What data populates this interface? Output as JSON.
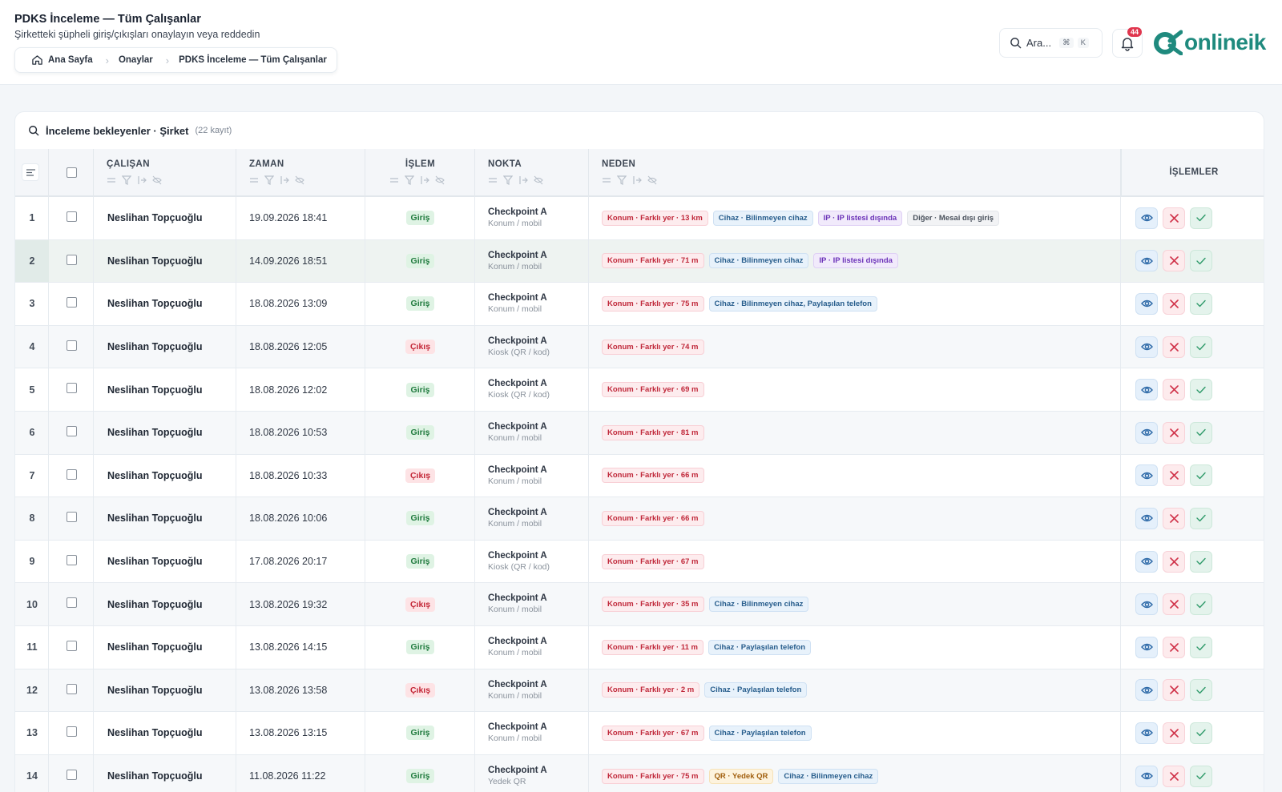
{
  "header": {
    "title": "PDKS İnceleme — Tüm Çalışanlar",
    "subtitle": "Şirketteki şüpheli giriş/çıkışları onaylayın veya reddedin",
    "breadcrumb": [
      "Ana Sayfa",
      "Onaylar",
      "PDKS İnceleme — Tüm Çalışanlar"
    ],
    "search_placeholder": "Ara...",
    "search_kbd": [
      "⌘",
      "K"
    ],
    "notification_count": "44",
    "logo_text": "onlineik"
  },
  "panel": {
    "title": "İnceleme bekleyenler · Şirket",
    "count_label": "(22 kayıt)"
  },
  "columns": {
    "employee": "ÇALIŞAN",
    "time": "ZAMAN",
    "operation": "İŞLEM",
    "point": "NOKTA",
    "reason": "NEDEN",
    "actions": "İŞLEMLER"
  },
  "rows": [
    {
      "num": "1",
      "employee": "Neslihan Topçuoğlu",
      "time": "19.09.2026 18:41",
      "op": "Giriş",
      "op_type": "in",
      "point": "Checkpoint A",
      "point_sub": "Konum / mobil",
      "tags": [
        {
          "type": "konum",
          "text": "Konum · Farklı yer · 13 km"
        },
        {
          "type": "cihaz",
          "text": "Cihaz · Bilinmeyen cihaz"
        },
        {
          "type": "ip",
          "text": "IP · IP listesi dışında"
        },
        {
          "type": "diger",
          "text": "Diğer · Mesai dışı giriş"
        }
      ]
    },
    {
      "num": "2",
      "employee": "Neslihan Topçuoğlu",
      "time": "14.09.2026 18:51",
      "op": "Giriş",
      "op_type": "in",
      "point": "Checkpoint A",
      "point_sub": "Konum / mobil",
      "tags": [
        {
          "type": "konum",
          "text": "Konum · Farklı yer · 71 m"
        },
        {
          "type": "cihaz",
          "text": "Cihaz · Bilinmeyen cihaz"
        },
        {
          "type": "ip",
          "text": "IP · IP listesi dışında"
        }
      ]
    },
    {
      "num": "3",
      "employee": "Neslihan Topçuoğlu",
      "time": "18.08.2026 13:09",
      "op": "Giriş",
      "op_type": "in",
      "point": "Checkpoint A",
      "point_sub": "Konum / mobil",
      "tags": [
        {
          "type": "konum",
          "text": "Konum · Farklı yer · 75 m"
        },
        {
          "type": "cihaz",
          "text": "Cihaz · Bilinmeyen cihaz, Paylaşılan telefon"
        }
      ]
    },
    {
      "num": "4",
      "employee": "Neslihan Topçuoğlu",
      "time": "18.08.2026 12:05",
      "op": "Çıkış",
      "op_type": "out",
      "point": "Checkpoint A",
      "point_sub": "Kiosk (QR / kod)",
      "tags": [
        {
          "type": "konum",
          "text": "Konum · Farklı yer · 74 m"
        }
      ]
    },
    {
      "num": "5",
      "employee": "Neslihan Topçuoğlu",
      "time": "18.08.2026 12:02",
      "op": "Giriş",
      "op_type": "in",
      "point": "Checkpoint A",
      "point_sub": "Kiosk (QR / kod)",
      "tags": [
        {
          "type": "konum",
          "text": "Konum · Farklı yer · 69 m"
        }
      ]
    },
    {
      "num": "6",
      "employee": "Neslihan Topçuoğlu",
      "time": "18.08.2026 10:53",
      "op": "Giriş",
      "op_type": "in",
      "point": "Checkpoint A",
      "point_sub": "Konum / mobil",
      "tags": [
        {
          "type": "konum",
          "text": "Konum · Farklı yer · 81 m"
        }
      ]
    },
    {
      "num": "7",
      "employee": "Neslihan Topçuoğlu",
      "time": "18.08.2026 10:33",
      "op": "Çıkış",
      "op_type": "out",
      "point": "Checkpoint A",
      "point_sub": "Konum / mobil",
      "tags": [
        {
          "type": "konum",
          "text": "Konum · Farklı yer · 66 m"
        }
      ]
    },
    {
      "num": "8",
      "employee": "Neslihan Topçuoğlu",
      "time": "18.08.2026 10:06",
      "op": "Giriş",
      "op_type": "in",
      "point": "Checkpoint A",
      "point_sub": "Konum / mobil",
      "tags": [
        {
          "type": "konum",
          "text": "Konum · Farklı yer · 66 m"
        }
      ]
    },
    {
      "num": "9",
      "employee": "Neslihan Topçuoğlu",
      "time": "17.08.2026 20:17",
      "op": "Giriş",
      "op_type": "in",
      "point": "Checkpoint A",
      "point_sub": "Kiosk (QR / kod)",
      "tags": [
        {
          "type": "konum",
          "text": "Konum · Farklı yer · 67 m"
        }
      ]
    },
    {
      "num": "10",
      "employee": "Neslihan Topçuoğlu",
      "time": "13.08.2026 19:32",
      "op": "Çıkış",
      "op_type": "out",
      "point": "Checkpoint A",
      "point_sub": "Konum / mobil",
      "tags": [
        {
          "type": "konum",
          "text": "Konum · Farklı yer · 35 m"
        },
        {
          "type": "cihaz",
          "text": "Cihaz · Bilinmeyen cihaz"
        }
      ]
    },
    {
      "num": "11",
      "employee": "Neslihan Topçuoğlu",
      "time": "13.08.2026 14:15",
      "op": "Giriş",
      "op_type": "in",
      "point": "Checkpoint A",
      "point_sub": "Konum / mobil",
      "tags": [
        {
          "type": "konum",
          "text": "Konum · Farklı yer · 11 m"
        },
        {
          "type": "cihaz",
          "text": "Cihaz · Paylaşılan telefon"
        }
      ]
    },
    {
      "num": "12",
      "employee": "Neslihan Topçuoğlu",
      "time": "13.08.2026 13:58",
      "op": "Çıkış",
      "op_type": "out",
      "point": "Checkpoint A",
      "point_sub": "Konum / mobil",
      "tags": [
        {
          "type": "konum",
          "text": "Konum · Farklı yer · 2 m"
        },
        {
          "type": "cihaz",
          "text": "Cihaz · Paylaşılan telefon"
        }
      ]
    },
    {
      "num": "13",
      "employee": "Neslihan Topçuoğlu",
      "time": "13.08.2026 13:15",
      "op": "Giriş",
      "op_type": "in",
      "point": "Checkpoint A",
      "point_sub": "Konum / mobil",
      "tags": [
        {
          "type": "konum",
          "text": "Konum · Farklı yer · 67 m"
        },
        {
          "type": "cihaz",
          "text": "Cihaz · Paylaşılan telefon"
        }
      ]
    },
    {
      "num": "14",
      "employee": "Neslihan Topçuoğlu",
      "time": "11.08.2026 11:22",
      "op": "Giriş",
      "op_type": "in",
      "point": "Checkpoint A",
      "point_sub": "Yedek QR",
      "tags": [
        {
          "type": "konum",
          "text": "Konum · Farklı yer · 75 m"
        },
        {
          "type": "qr",
          "text": "QR · Yedek QR"
        },
        {
          "type": "cihaz",
          "text": "Cihaz · Bilinmeyen cihaz"
        }
      ]
    }
  ],
  "colors": {
    "accent": "#1f8a7e",
    "danger": "#c32636",
    "success": "#1f7a3d",
    "info": "#275d8c"
  }
}
